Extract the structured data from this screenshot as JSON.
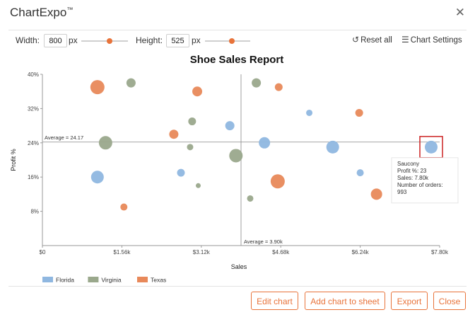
{
  "app": {
    "title": "ChartExpo",
    "trademark": "™"
  },
  "toolbar": {
    "width_label": "Width:",
    "width_value": "800",
    "width_unit": "px",
    "width_slider": 0.6,
    "height_label": "Height:",
    "height_value": "525",
    "height_unit": "px",
    "height_slider": 0.6,
    "reset_label": "Reset all",
    "settings_label": "Chart Settings"
  },
  "icons": {
    "close": "close-icon",
    "reset": "reset-icon",
    "settings": "sliders-icon"
  },
  "colors": {
    "Florida": "#8fb7e0",
    "Virginia": "#9aa88c",
    "Texas": "#e8895a",
    "highlight": "#cc2222",
    "accent": "#e8733a"
  },
  "chart_data": {
    "type": "scatter",
    "title": "Shoe Sales Report",
    "xlabel": "Sales",
    "ylabel": "Profit %",
    "xlim": [
      0,
      7800
    ],
    "ylim": [
      0,
      40
    ],
    "x_ticks": [
      "$0",
      "$1.56k",
      "$3.12k",
      "$4.68k",
      "$6.24k",
      "$7.80k"
    ],
    "y_ticks": [
      "8%",
      "16%",
      "24%",
      "32%",
      "40%"
    ],
    "legend_position": "bottom-left",
    "reference_lines": {
      "x_average": 3.9,
      "x_label": "Average = 3.90k",
      "y_average": 24.17,
      "y_label": "Average = 24.17"
    },
    "series": [
      {
        "name": "Florida",
        "points": [
          {
            "x": 1080,
            "y": 16,
            "size": 18
          },
          {
            "x": 2720,
            "y": 17,
            "size": 11
          },
          {
            "x": 3680,
            "y": 28,
            "size": 13
          },
          {
            "x": 4360,
            "y": 24,
            "size": 16
          },
          {
            "x": 5240,
            "y": 31,
            "size": 9
          },
          {
            "x": 5700,
            "y": 23,
            "size": 18
          },
          {
            "x": 6240,
            "y": 17,
            "size": 10
          },
          {
            "x": 7800,
            "y": 23,
            "size": 18
          }
        ]
      },
      {
        "name": "Virginia",
        "points": [
          {
            "x": 1240,
            "y": 24,
            "size": 19
          },
          {
            "x": 1740,
            "y": 38,
            "size": 13
          },
          {
            "x": 2940,
            "y": 29,
            "size": 11
          },
          {
            "x": 2900,
            "y": 23,
            "size": 9
          },
          {
            "x": 3060,
            "y": 14,
            "size": 7
          },
          {
            "x": 3800,
            "y": 21,
            "size": 19
          },
          {
            "x": 4200,
            "y": 38,
            "size": 13
          },
          {
            "x": 4080,
            "y": 11,
            "size": 9
          }
        ]
      },
      {
        "name": "Texas",
        "points": [
          {
            "x": 1080,
            "y": 37,
            "size": 20
          },
          {
            "x": 1600,
            "y": 9,
            "size": 10
          },
          {
            "x": 2580,
            "y": 26,
            "size": 13
          },
          {
            "x": 3040,
            "y": 36,
            "size": 14
          },
          {
            "x": 4640,
            "y": 37,
            "size": 11
          },
          {
            "x": 4620,
            "y": 15,
            "size": 20
          },
          {
            "x": 6220,
            "y": 31,
            "size": 11
          },
          {
            "x": 6560,
            "y": 12,
            "size": 16
          }
        ]
      }
    ],
    "highlight": {
      "series": "Florida",
      "index": 7
    },
    "tooltip": {
      "name": "Saucony",
      "lines": [
        "Profit %: 23",
        "Sales: 7.80k",
        "Number of orders:",
        "993"
      ]
    }
  },
  "footer": {
    "edit_label": "Edit chart",
    "add_label": "Add chart to sheet",
    "export_label": "Export",
    "close_label": "Close"
  }
}
